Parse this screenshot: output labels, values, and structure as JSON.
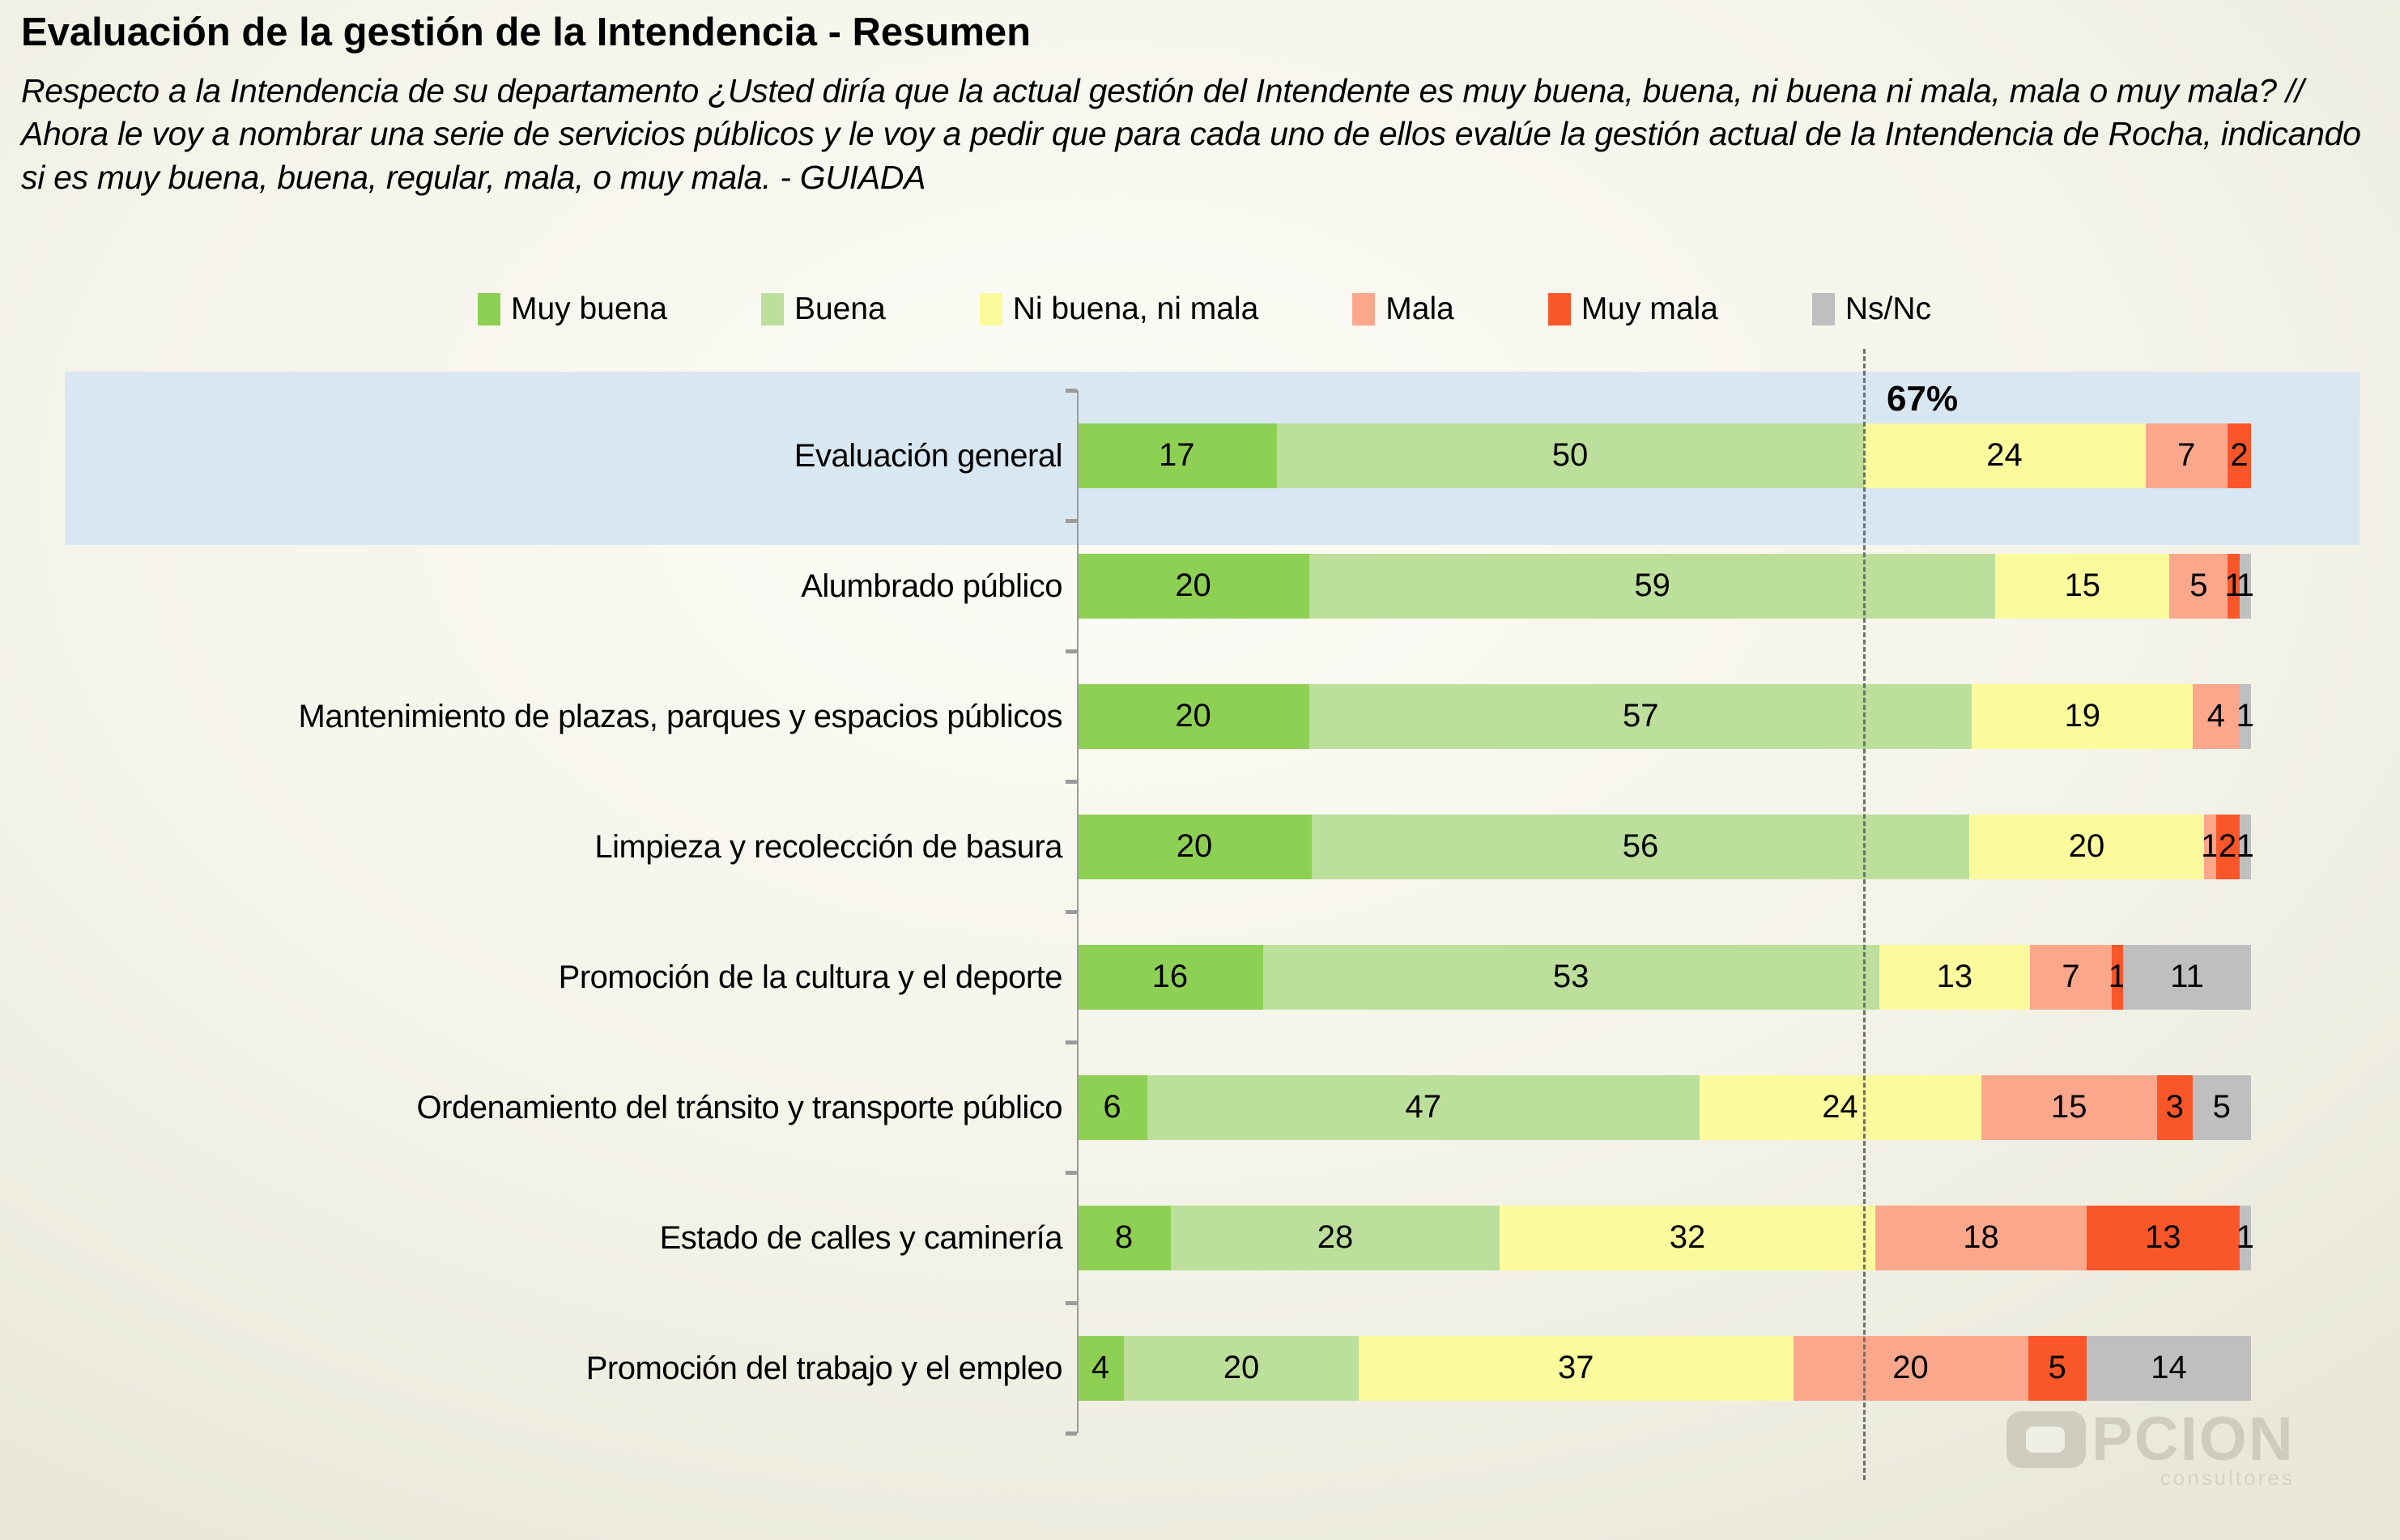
{
  "title": "Evaluación de la gestión de la Intendencia - Resumen",
  "subtitle": "Respecto a la Intendencia de su departamento ¿Usted diría que la actual gestión del Intendente es muy buena, buena, ni buena ni mala, mala o muy mala? // Ahora le voy a nombrar una serie de servicios públicos y le voy a pedir que para cada uno de ellos evalúe la gestión actual de la Intendencia de Rocha, indicando si es muy buena, buena, regular, mala, o muy mala. - GUIADA",
  "reference": {
    "label": "67%",
    "value": 67
  },
  "watermark": {
    "brand": "OPCION",
    "brand_rest": "PCION",
    "sub": "consultores"
  },
  "colors": {
    "highlight_band": "#D8E7F1",
    "axis": "#9B9B99",
    "reference_line": "#6F6F6D",
    "text": "#000000"
  },
  "chart_data": {
    "type": "bar",
    "orientation": "horizontal",
    "stacked": true,
    "value_unit": "%",
    "xlim": [
      0,
      100
    ],
    "legend_position": "top",
    "grid": false,
    "highlighted_category": "Evaluación general",
    "reference_line": {
      "value": 67,
      "label": "67%"
    },
    "categories": [
      "Evaluación general",
      "Alumbrado público",
      "Mantenimiento de plazas, parques y espacios públicos",
      "Limpieza y recolección de basura",
      "Promoción de la cultura y el deporte",
      "Ordenamiento del tránsito y transporte público",
      "Estado de calles y caminería",
      "Promoción del trabajo y el empleo"
    ],
    "series": [
      {
        "name": "Muy buena",
        "color": "#8ED054",
        "values": [
          17,
          20,
          20,
          20,
          16,
          6,
          8,
          4
        ]
      },
      {
        "name": "Buena",
        "color": "#BCDF9C",
        "values": [
          50,
          59,
          57,
          56,
          53,
          47,
          28,
          20
        ]
      },
      {
        "name": "Ni buena, ni mala",
        "color": "#FBFB9D",
        "values": [
          24,
          15,
          19,
          20,
          13,
          24,
          32,
          37
        ]
      },
      {
        "name": "Mala",
        "color": "#FBA78C",
        "values": [
          7,
          5,
          4,
          1,
          7,
          15,
          18,
          20
        ]
      },
      {
        "name": "Muy mala",
        "color": "#F9572A",
        "values": [
          2,
          1,
          0,
          2,
          1,
          3,
          13,
          5
        ]
      },
      {
        "name": "Ns/Nc",
        "color": "#BFBFBF",
        "values": [
          0,
          1,
          1,
          1,
          11,
          5,
          1,
          14
        ]
      }
    ]
  }
}
